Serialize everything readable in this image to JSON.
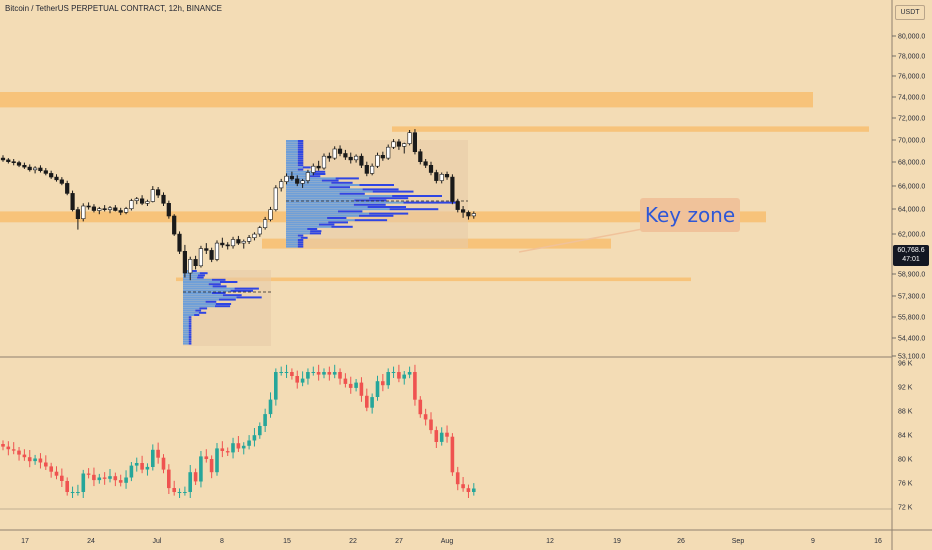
{
  "header": {
    "title": "Bitcoin / TetherUS PERPETUAL CONTRACT, 12h, BINANCE",
    "currency_button": "USDT"
  },
  "price_axis": {
    "ticks": [
      "80,000.0",
      "78,000.0",
      "76,000.0",
      "74,000.0",
      "72,000.0",
      "70,000.0",
      "68,000.0",
      "66,000.0",
      "64,000.0",
      "62,000.0",
      "58,900.0",
      "57,300.0",
      "55,800.0",
      "54,400.0",
      "53,100.0"
    ],
    "current_price": "60,768.6",
    "countdown": "47:01"
  },
  "oscillator_axis": {
    "ticks": [
      "96 K",
      "92 K",
      "88 K",
      "84 K",
      "80 K",
      "76 K",
      "72 K"
    ]
  },
  "time_axis": {
    "ticks": [
      "17",
      "24",
      "Jul",
      "8",
      "15",
      "22",
      "27",
      "Aug",
      "12",
      "19",
      "26",
      "Sep",
      "9",
      "16"
    ]
  },
  "annotation": {
    "label": "Key zone"
  },
  "colors": {
    "background": "#f3dcb5",
    "zone": "#f7c37a",
    "bull": "#26a69a",
    "bear": "#ef5350",
    "candle": "#1a1a1a",
    "profile_up": "#2f45e3",
    "profile_down": "#6f9fd8",
    "annotation_text": "#2f57d6"
  },
  "chart_data": {
    "type": "candlestick",
    "pane": "price",
    "symbol": "BTCUSDT.P",
    "timeframe": "12h",
    "zones_price": [
      {
        "name": "",
        "low": 72500,
        "high": 74200
      },
      {
        "name": "",
        "low": 69800,
        "high": 70400
      },
      {
        "name": "",
        "low": 59800,
        "high": 61000
      },
      {
        "name": "",
        "low": 56900,
        "high": 58000
      },
      {
        "name": "",
        "low": 53300,
        "high": 53700
      }
    ],
    "candles_ohlc": [
      [
        66900,
        67200,
        66500,
        66700
      ],
      [
        66700,
        66900,
        66300,
        66500
      ],
      [
        66500,
        66800,
        66100,
        66400
      ],
      [
        66400,
        66600,
        65900,
        66100
      ],
      [
        66100,
        66400,
        65700,
        65900
      ],
      [
        65900,
        66200,
        65400,
        65600
      ],
      [
        65600,
        66000,
        65200,
        65800
      ],
      [
        65800,
        66100,
        65300,
        65500
      ],
      [
        65500,
        65800,
        65000,
        65200
      ],
      [
        65200,
        65500,
        64600,
        64800
      ],
      [
        64800,
        65100,
        64300,
        64500
      ],
      [
        64500,
        64800,
        63900,
        64100
      ],
      [
        64100,
        64400,
        62800,
        63000
      ],
      [
        63000,
        63300,
        61000,
        61200
      ],
      [
        61200,
        61500,
        59000,
        60200
      ],
      [
        60200,
        61900,
        59900,
        61600
      ],
      [
        61600,
        62000,
        61200,
        61500
      ],
      [
        61500,
        61800,
        60900,
        61100
      ],
      [
        61100,
        61500,
        60700,
        61300
      ],
      [
        61300,
        61700,
        61000,
        61200
      ],
      [
        61200,
        61600,
        60800,
        61400
      ],
      [
        61400,
        61700,
        61000,
        61100
      ],
      [
        61100,
        61400,
        60600,
        60900
      ],
      [
        60900,
        61500,
        60700,
        61300
      ],
      [
        61300,
        62400,
        61100,
        62200
      ],
      [
        62200,
        62600,
        61800,
        62400
      ],
      [
        62400,
        62800,
        61700,
        61900
      ],
      [
        61900,
        62300,
        61600,
        62100
      ],
      [
        62100,
        63800,
        62000,
        63400
      ],
      [
        63400,
        63700,
        62500,
        62800
      ],
      [
        62800,
        63100,
        61600,
        61900
      ],
      [
        61900,
        62200,
        60200,
        60500
      ],
      [
        60500,
        60700,
        58300,
        58500
      ],
      [
        58500,
        58800,
        56300,
        56600
      ],
      [
        56600,
        57300,
        53700,
        54200
      ],
      [
        54200,
        56000,
        53400,
        55700
      ],
      [
        55700,
        56100,
        54600,
        55000
      ],
      [
        55000,
        57200,
        54800,
        56900
      ],
      [
        56900,
        57500,
        56300,
        56700
      ],
      [
        56700,
        57000,
        55400,
        55700
      ],
      [
        55700,
        57800,
        55500,
        57500
      ],
      [
        57500,
        58100,
        57000,
        57300
      ],
      [
        57300,
        57600,
        56800,
        57200
      ],
      [
        57200,
        58200,
        56900,
        57900
      ],
      [
        57900,
        58300,
        57300,
        57500
      ],
      [
        57500,
        57900,
        56900,
        57700
      ],
      [
        57700,
        58400,
        57400,
        58100
      ],
      [
        58100,
        58700,
        57800,
        58500
      ],
      [
        58500,
        59400,
        58200,
        59200
      ],
      [
        59200,
        60400,
        59000,
        60100
      ],
      [
        60100,
        61500,
        59900,
        61200
      ],
      [
        61200,
        63900,
        61000,
        63600
      ],
      [
        63600,
        64600,
        63200,
        64300
      ],
      [
        64300,
        65200,
        64000,
        64900
      ],
      [
        64900,
        65400,
        64400,
        64600
      ],
      [
        64600,
        65000,
        63800,
        64100
      ],
      [
        64100,
        64600,
        63600,
        64400
      ],
      [
        64400,
        65600,
        64100,
        65300
      ],
      [
        65300,
        66300,
        65000,
        66000
      ],
      [
        66000,
        66600,
        65500,
        65800
      ],
      [
        65800,
        67400,
        65600,
        67100
      ],
      [
        67100,
        67500,
        66500,
        66900
      ],
      [
        66900,
        68200,
        66700,
        67900
      ],
      [
        67900,
        68300,
        67100,
        67400
      ],
      [
        67400,
        67800,
        66700,
        67000
      ],
      [
        67000,
        67500,
        66300,
        66700
      ],
      [
        66700,
        67300,
        66400,
        67100
      ],
      [
        67100,
        67400,
        65800,
        66100
      ],
      [
        66100,
        66500,
        64900,
        65200
      ],
      [
        65200,
        66300,
        65000,
        66000
      ],
      [
        66000,
        67500,
        65800,
        67200
      ],
      [
        67200,
        67600,
        66600,
        66900
      ],
      [
        66900,
        68400,
        66700,
        68100
      ],
      [
        68100,
        69000,
        67900,
        68700
      ],
      [
        68700,
        69000,
        67800,
        68200
      ],
      [
        68200,
        68600,
        67400,
        68500
      ],
      [
        68500,
        70000,
        68300,
        69700
      ],
      [
        69700,
        70100,
        67300,
        67600
      ],
      [
        67600,
        67900,
        66200,
        66500
      ],
      [
        66500,
        66800,
        65800,
        66100
      ],
      [
        66100,
        66500,
        65000,
        65300
      ],
      [
        65300,
        65600,
        64100,
        64400
      ],
      [
        64400,
        65300,
        64100,
        65100
      ],
      [
        65100,
        65400,
        64500,
        64800
      ],
      [
        64800,
        65100,
        61800,
        62100
      ],
      [
        62100,
        62400,
        60900,
        61200
      ],
      [
        61200,
        61600,
        60300,
        60900
      ],
      [
        60900,
        61100,
        60100,
        60500
      ],
      [
        60500,
        61000,
        60200,
        60768.6
      ]
    ]
  }
}
